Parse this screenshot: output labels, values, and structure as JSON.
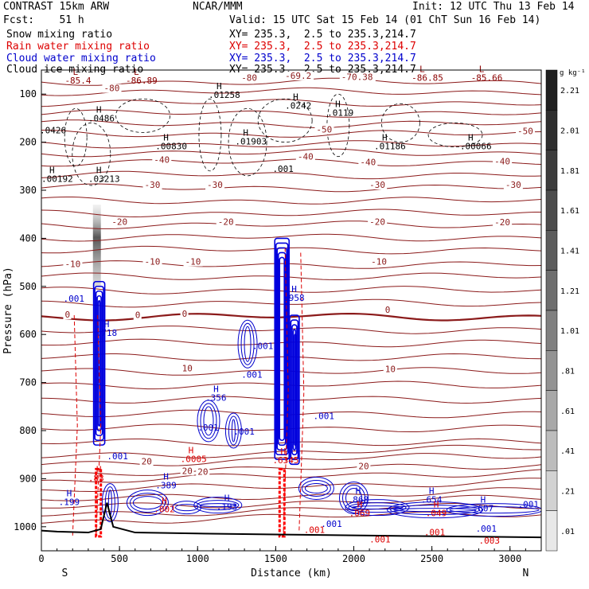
{
  "header": {
    "model": "CONTRAST 15km ARW",
    "institution": "NCAR/MMM",
    "init": "Init: 12 UTC Thu 13 Feb 14",
    "fcst": "Fcst:    51 h",
    "valid": "Valid: 15 UTC Sat 15 Feb 14 (01 ChT Sun 16 Feb 14)"
  },
  "fields": [
    {
      "label": "Snow mixing ratio",
      "xy": "XY= 235.3,  2.5 to 235.3,214.7",
      "color": "#000000"
    },
    {
      "label": "Rain water mixing ratio",
      "xy": "XY= 235.3,  2.5 to 235.3,214.7",
      "color": "#dd0000"
    },
    {
      "label": "Cloud water mixing ratio",
      "xy": "XY= 235.3,  2.5 to 235.3,214.7",
      "color": "#0000cc"
    },
    {
      "label": "Cloud ice mixing ratio",
      "xy": "XY= 235.3,  2.5 to 235.3,214.7",
      "color": "#000000"
    }
  ],
  "chart_data": {
    "type": "cross-section",
    "xlabel": "Distance (km)",
    "ylabel": "Pressure (hPa)",
    "xlim": [
      0,
      3200
    ],
    "ylim": [
      1050,
      50
    ],
    "x_ticks": [
      "0",
      "500",
      "1000",
      "1500",
      "2000",
      "2500",
      "3000"
    ],
    "y_ticks": [
      "100",
      "200",
      "300",
      "400",
      "500",
      "600",
      "700",
      "800",
      "900",
      "1000"
    ],
    "endpoints": {
      "left": "S",
      "right": "N"
    },
    "colorbar": {
      "unit": "g kg⁻¹",
      "labels": [
        "2.21",
        "2.01",
        "1.81",
        "1.61",
        "1.41",
        "1.21",
        "1.01",
        ".81",
        ".61",
        ".41",
        ".21",
        ".01"
      ],
      "colors": [
        "#202020",
        "#2e2e2e",
        "#3c3c3c",
        "#4c4c4c",
        "#5c5c5c",
        "#6e6e6e",
        "#808080",
        "#939393",
        "#a8a8a8",
        "#bcbcbc",
        "#d2d2d2",
        "#e8e8e8"
      ]
    },
    "temperature_isotherms": [
      {
        "level": "-80",
        "labels": [
          [
            "-80",
            1280,
            72
          ],
          [
            "-80",
            400,
            94
          ]
        ]
      },
      {
        "level": "-70",
        "labels": [
          [
            "-70.38",
            1920,
            71
          ],
          [
            "-69.2",
            1560,
            68
          ]
        ]
      },
      {
        "level": "-50",
        "labels": [
          [
            "-50",
            1760,
            180
          ],
          [
            "-50",
            3100,
            183
          ]
        ]
      },
      {
        "level": "-40",
        "labels": [
          [
            "-40",
            1640,
            236
          ],
          [
            "-40",
            720,
            243
          ],
          [
            "-40",
            2040,
            248
          ],
          [
            "-40",
            2900,
            246
          ]
        ]
      },
      {
        "level": "-30",
        "labels": [
          [
            "-30",
            660,
            295
          ],
          [
            "-30",
            1060,
            295
          ],
          [
            "-30",
            2100,
            295
          ],
          [
            "-30",
            2970,
            295
          ]
        ]
      },
      {
        "level": "-20",
        "labels": [
          [
            "-20",
            450,
            372
          ],
          [
            "-20",
            1130,
            372
          ],
          [
            "-20",
            2100,
            372
          ],
          [
            "-20",
            2900,
            373
          ]
        ]
      },
      {
        "level": "-10",
        "labels": [
          [
            "-10",
            150,
            460
          ],
          [
            "-10",
            660,
            455
          ],
          [
            "-10",
            920,
            455
          ],
          [
            "-10",
            2110,
            455
          ]
        ]
      },
      {
        "level": "0",
        "labels": [
          [
            "0",
            150,
            565
          ],
          [
            "0",
            600,
            566
          ],
          [
            "0",
            900,
            563
          ],
          [
            "0",
            2200,
            555
          ]
        ]
      },
      {
        "level": "10",
        "labels": [
          [
            "10",
            900,
            677
          ],
          [
            "10",
            2200,
            678
          ]
        ]
      },
      {
        "level": "20",
        "labels": [
          [
            "20",
            640,
            870
          ],
          [
            "20",
            900,
            890
          ],
          [
            "20",
            1000,
            892
          ],
          [
            "20",
            2030,
            880
          ]
        ]
      }
    ],
    "extrema": [
      {
        "type": "L",
        "value": "-85.4",
        "x": 150,
        "p": 78,
        "color": "#8b0000"
      },
      {
        "type": "L",
        "value": "-86.89",
        "x": 540,
        "p": 78,
        "color": "#8b0000"
      },
      {
        "type": "L",
        "value": "-86.85",
        "x": 2370,
        "p": 72,
        "color": "#8b0000"
      },
      {
        "type": "L",
        "value": "-85.66",
        "x": 2750,
        "p": 72,
        "color": "#8b0000"
      },
      {
        "type": "H",
        "value": ".01258",
        "x": 1070,
        "p": 108,
        "color": "#000000"
      },
      {
        "type": "H",
        "value": ".0242",
        "x": 1560,
        "p": 130,
        "color": "#000000"
      },
      {
        "type": "H",
        "value": ".0119",
        "x": 1830,
        "p": 145,
        "color": "#000000"
      },
      {
        "type": "H",
        "value": ".0486",
        "x": 300,
        "p": 157,
        "color": "#000000"
      },
      {
        "type": "H",
        "value": ".00830",
        "x": 730,
        "p": 215,
        "color": "#000000"
      },
      {
        "type": "H",
        "value": ".01903",
        "x": 1240,
        "p": 205,
        "color": "#000000"
      },
      {
        "type": "H",
        "value": ".01186",
        "x": 2130,
        "p": 215,
        "color": "#000000"
      },
      {
        "type": "H",
        "value": ".00066",
        "x": 2680,
        "p": 215,
        "color": "#000000"
      },
      {
        "type": "H",
        "value": ".00192",
        "x": 0,
        "p": 283,
        "color": "#000000"
      },
      {
        "type": "H",
        "value": ".03213",
        "x": 300,
        "p": 283,
        "color": "#000000"
      },
      {
        "type": "H",
        "value": ".718",
        "x": 350,
        "p": 603,
        "color": "#0000cc"
      },
      {
        "type": "H",
        "value": ".958",
        "x": 1550,
        "p": 530,
        "color": "#0000cc"
      },
      {
        "type": "H",
        "value": ".356",
        "x": 1050,
        "p": 738,
        "color": "#0000cc"
      },
      {
        "type": "H",
        "value": ".389",
        "x": 730,
        "p": 920,
        "color": "#0000cc"
      },
      {
        "type": "H",
        "value": ".199",
        "x": 110,
        "p": 955,
        "color": "#0000cc"
      },
      {
        "type": "H",
        "value": ".193",
        "x": 1120,
        "p": 965,
        "color": "#0000cc"
      },
      {
        "type": "H",
        "value": ".868",
        "x": 1960,
        "p": 950,
        "color": "#0000cc"
      },
      {
        "type": "H",
        "value": ".654",
        "x": 2430,
        "p": 950,
        "color": "#0000cc"
      },
      {
        "type": "H",
        "value": ".607",
        "x": 2760,
        "p": 968,
        "color": "#0000cc"
      },
      {
        "type": "H",
        "value": ".002",
        "x": 720,
        "p": 970,
        "color": "#dd0000"
      },
      {
        "type": "H",
        "value": ".0005",
        "x": 890,
        "p": 865,
        "color": "#dd0000"
      },
      {
        "type": "H",
        "value": ".6345",
        "x": 1480,
        "p": 868,
        "color": "#dd0000"
      },
      {
        "type": "H",
        "value": ".069",
        "x": 1970,
        "p": 978,
        "color": "#dd0000"
      },
      {
        "type": "H",
        "value": ".049",
        "x": 2460,
        "p": 978,
        "color": "#dd0000"
      },
      {
        "type": "H",
        "value": ".83",
        "x": 300,
        "p": 905,
        "color": "#dd0000"
      }
    ],
    "contour_labels": [
      {
        "text": ".0426",
        "x": -40,
        "p": 182,
        "color": "#000000"
      },
      {
        "text": ".001",
        "x": 1480,
        "p": 262,
        "color": "#000000"
      },
      {
        "text": ".001",
        "x": 140,
        "p": 532,
        "color": "#0000cc"
      },
      {
        "text": ".001",
        "x": 1350,
        "p": 630,
        "color": "#0000cc"
      },
      {
        "text": ".001",
        "x": 1280,
        "p": 690,
        "color": "#0000cc"
      },
      {
        "text": ".001",
        "x": 1000,
        "p": 800,
        "color": "#0000cc"
      },
      {
        "text": ".001",
        "x": 1230,
        "p": 808,
        "color": "#0000cc"
      },
      {
        "text": ".001",
        "x": 1740,
        "p": 776,
        "color": "#0000cc"
      },
      {
        "text": ".001",
        "x": 420,
        "p": 860,
        "color": "#0000cc"
      },
      {
        "text": ".001",
        "x": 1790,
        "p": 1000,
        "color": "#0000cc"
      },
      {
        "text": ".001",
        "x": 3050,
        "p": 960,
        "color": "#0000cc"
      },
      {
        "text": ".001",
        "x": 2780,
        "p": 1010,
        "color": "#0000cc"
      },
      {
        "text": ".001",
        "x": 1680,
        "p": 1013,
        "color": "#dd0000"
      },
      {
        "text": ".001",
        "x": 2100,
        "p": 1033,
        "color": "#dd0000"
      },
      {
        "text": ".003",
        "x": 2800,
        "p": 1035,
        "color": "#dd0000"
      },
      {
        "text": ".001",
        "x": 2450,
        "p": 1018,
        "color": "#dd0000"
      }
    ]
  }
}
